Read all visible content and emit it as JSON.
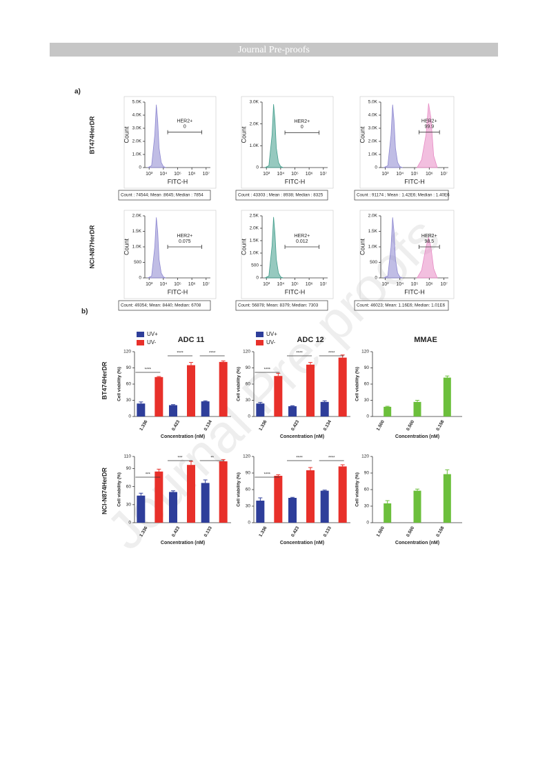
{
  "header": "Journal Pre-proofs",
  "watermark": "Journal Pre-proofs",
  "panel_labels": [
    "a)",
    "b)"
  ],
  "row_labels": [
    "BT474HerDR",
    "NCI-N87HerDR",
    "BT474HerDR",
    "NCI-N874HerDR"
  ],
  "chart_data": [
    {
      "type": "flow",
      "ylabel": "Count",
      "xlabel": "FITC-H",
      "log_x": true,
      "xlim": [
        500,
        20000000
      ],
      "xticks": [
        {
          "value": 1000,
          "label": "10³"
        },
        {
          "value": 10000,
          "label": "10⁴"
        },
        {
          "value": 100000,
          "label": "10⁵"
        },
        {
          "value": 1000000,
          "label": "10⁶"
        },
        {
          "value": 10000000,
          "label": "10⁷"
        }
      ],
      "ylim": [
        0,
        5000
      ],
      "yticks": [
        0,
        {
          "value": 1000,
          "label": "1.0K"
        },
        {
          "value": 2000,
          "label": "2.0K"
        },
        {
          "value": 3000,
          "label": "3.0K"
        },
        {
          "value": 4000,
          "label": "4.0K"
        },
        {
          "value": 5000,
          "label": "5.0K"
        }
      ],
      "series": [
        {
          "color": "#8c86d0",
          "x": [
            800,
            1500,
            2500,
            3200,
            4000,
            5000,
            7000,
            10000,
            15000
          ],
          "values": [
            0,
            150,
            2500,
            4800,
            3600,
            1500,
            400,
            80,
            0
          ]
        }
      ],
      "gate": {
        "label": "HER2+",
        "value": "0",
        "range": [
          20000,
          5000000
        ],
        "level": 2700
      },
      "stats": "Count : 74544; Mean :8645; Median : 7854"
    },
    {
      "type": "flow",
      "ylabel": "Count",
      "xlabel": "FITC-H",
      "log_x": true,
      "xlim": [
        500,
        20000000
      ],
      "xticks": [
        {
          "value": 1000,
          "label": "10³"
        },
        {
          "value": 10000,
          "label": "10⁴"
        },
        {
          "value": 100000,
          "label": "10⁵"
        },
        {
          "value": 1000000,
          "label": "10⁶"
        },
        {
          "value": 10000000,
          "label": "10⁷"
        }
      ],
      "ylim": [
        0,
        3000
      ],
      "yticks": [
        0,
        {
          "value": 1000,
          "label": "1.0K"
        },
        {
          "value": 2000,
          "label": "2.0K"
        },
        {
          "value": 3000,
          "label": "3.0K"
        }
      ],
      "series": [
        {
          "color": "#3f9c8a",
          "x": [
            800,
            1500,
            2500,
            3200,
            4000,
            5000,
            7000,
            10000,
            15000
          ],
          "values": [
            0,
            90,
            1500,
            2900,
            2200,
            900,
            240,
            50,
            0
          ]
        }
      ],
      "gate": {
        "label": "HER2+",
        "value": "0",
        "range": [
          20000,
          5000000
        ],
        "level": 1600
      },
      "stats": "Count : 43303 ; Mean : 8938; Median : 8325"
    },
    {
      "type": "flow",
      "ylabel": "Count",
      "xlabel": "FITC-H",
      "log_x": true,
      "xlim": [
        500,
        20000000
      ],
      "xticks": [
        {
          "value": 1000,
          "label": "10³"
        },
        {
          "value": 10000,
          "label": "10⁴"
        },
        {
          "value": 100000,
          "label": "10⁵"
        },
        {
          "value": 1000000,
          "label": "10⁶"
        },
        {
          "value": 10000000,
          "label": "10⁷"
        }
      ],
      "ylim": [
        0,
        5000
      ],
      "yticks": [
        0,
        {
          "value": 1000,
          "label": "1.0K"
        },
        {
          "value": 2000,
          "label": "2.0K"
        },
        {
          "value": 3000,
          "label": "3.0K"
        },
        {
          "value": 4000,
          "label": "4.0K"
        },
        {
          "value": 5000,
          "label": "5.0K"
        }
      ],
      "series": [
        {
          "color": "#8c86d0",
          "x": [
            800,
            1500,
            2500,
            3200,
            4000,
            5000,
            7000,
            10000,
            15000
          ],
          "values": [
            0,
            150,
            2500,
            4800,
            3600,
            1500,
            400,
            80,
            0
          ]
        },
        {
          "color": "#e78ac4",
          "x": [
            150000,
            300000,
            600000,
            900000,
            1300000,
            2000000,
            3500000
          ],
          "values": [
            0,
            600,
            2500,
            4900,
            3800,
            900,
            0
          ]
        }
      ],
      "gate": {
        "label": "HER2+",
        "value": "99.9",
        "range": [
          200000,
          5000000
        ],
        "level": 2700
      },
      "stats": "Count : 91174 ; Mean : 1.42E6; Median : 1.40E6"
    },
    {
      "type": "flow",
      "ylabel": "Count",
      "xlabel": "FITC-H",
      "log_x": true,
      "xlim": [
        500,
        20000000
      ],
      "xticks": [
        {
          "value": 1000,
          "label": "10³"
        },
        {
          "value": 10000,
          "label": "10⁴"
        },
        {
          "value": 100000,
          "label": "10⁵"
        },
        {
          "value": 1000000,
          "label": "10⁶"
        },
        {
          "value": 10000000,
          "label": "10⁷"
        }
      ],
      "ylim": [
        0,
        2000
      ],
      "yticks": [
        0,
        500,
        {
          "value": 1000,
          "label": "1.0K"
        },
        {
          "value": 1500,
          "label": "1.5K"
        },
        {
          "value": 2000,
          "label": "2.0K"
        }
      ],
      "series": [
        {
          "color": "#8c86d0",
          "x": [
            800,
            1500,
            2500,
            3200,
            4000,
            5000,
            7000,
            10000,
            15000
          ],
          "values": [
            0,
            60,
            1000,
            1950,
            1500,
            600,
            160,
            30,
            0
          ]
        }
      ],
      "gate": {
        "label": "HER2+",
        "value": "0.075",
        "range": [
          20000,
          5000000
        ],
        "level": 1000
      },
      "stats": "Count: 49354; Mean: 8440; Median: 6708"
    },
    {
      "type": "flow",
      "ylabel": "Count",
      "xlabel": "FITC-H",
      "log_x": true,
      "xlim": [
        500,
        20000000
      ],
      "xticks": [
        {
          "value": 1000,
          "label": "10³"
        },
        {
          "value": 10000,
          "label": "10⁴"
        },
        {
          "value": 100000,
          "label": "10⁵"
        },
        {
          "value": 1000000,
          "label": "10⁶"
        },
        {
          "value": 10000000,
          "label": "10⁷"
        }
      ],
      "ylim": [
        0,
        2500
      ],
      "yticks": [
        0,
        500,
        {
          "value": 1000,
          "label": "1.0K"
        },
        {
          "value": 1500,
          "label": "1.5K"
        },
        {
          "value": 2000,
          "label": "2.0K"
        },
        {
          "value": 2500,
          "label": "2.5K"
        }
      ],
      "series": [
        {
          "color": "#3f9c8a",
          "x": [
            800,
            1500,
            2500,
            3200,
            4000,
            5000,
            7000,
            10000,
            15000
          ],
          "values": [
            0,
            80,
            1300,
            2450,
            1800,
            750,
            200,
            40,
            0
          ]
        }
      ],
      "gate": {
        "label": "HER2+",
        "value": "0.012",
        "range": [
          20000,
          5000000
        ],
        "level": 1250
      },
      "stats": "Count: 56878; Mean: 8379; Median: 7303"
    },
    {
      "type": "flow",
      "ylabel": "Count",
      "xlabel": "FITC-H",
      "log_x": true,
      "xlim": [
        500,
        20000000
      ],
      "xticks": [
        {
          "value": 1000,
          "label": "10³"
        },
        {
          "value": 10000,
          "label": "10⁴"
        },
        {
          "value": 100000,
          "label": "10⁵"
        },
        {
          "value": 1000000,
          "label": "10⁶"
        },
        {
          "value": 10000000,
          "label": "10⁷"
        }
      ],
      "ylim": [
        0,
        2000
      ],
      "yticks": [
        0,
        500,
        {
          "value": 1000,
          "label": "1.0K"
        },
        {
          "value": 1500,
          "label": "1.5K"
        },
        {
          "value": 2000,
          "label": "2.0K"
        }
      ],
      "series": [
        {
          "color": "#8c86d0",
          "x": [
            800,
            1500,
            2500,
            3200,
            4000,
            5000,
            7000,
            10000,
            15000
          ],
          "values": [
            0,
            60,
            1000,
            1950,
            1500,
            600,
            160,
            30,
            0
          ]
        },
        {
          "color": "#e78ac4",
          "x": [
            150000,
            300000,
            600000,
            900000,
            1300000,
            2000000,
            3500000
          ],
          "values": [
            0,
            250,
            1000,
            1300,
            1000,
            300,
            0
          ]
        }
      ],
      "gate": {
        "label": "HER2+",
        "value": "98.5",
        "range": [
          200000,
          5000000
        ],
        "level": 1000
      },
      "stats": "Count: 46023; Mean: 1.16E6; Median: 1.01E6"
    },
    {
      "type": "bar",
      "title": "ADC 11",
      "ylabel": "Cell viability (%)",
      "xlabel": "Concentration (nM)",
      "legend": true,
      "categories": [
        "1.336",
        "0.423",
        "0.134"
      ],
      "ylim": [
        0,
        120
      ],
      "yticks": [
        0,
        30,
        60,
        90,
        120
      ],
      "series": [
        {
          "name": "UV+",
          "color": "#2e3e9a",
          "values": [
            24,
            21,
            28
          ],
          "errors": [
            3,
            1,
            1
          ]
        },
        {
          "name": "UV-",
          "color": "#e8302a",
          "values": [
            73,
            95,
            101
          ],
          "errors": [
            1,
            5,
            2
          ]
        }
      ],
      "significance": [
        "****",
        "****",
        "****"
      ]
    },
    {
      "type": "bar",
      "title": "ADC 12",
      "ylabel": "Cell viability (%)",
      "xlabel": "Concentration (nM)",
      "legend": true,
      "categories": [
        "1.336",
        "0.423",
        "0.134"
      ],
      "ylim": [
        0,
        120
      ],
      "yticks": [
        0,
        30,
        60,
        90,
        120
      ],
      "series": [
        {
          "name": "UV+",
          "color": "#2e3e9a",
          "values": [
            24,
            19,
            27
          ],
          "errors": [
            2,
            1,
            2
          ]
        },
        {
          "name": "UV-",
          "color": "#e8302a",
          "values": [
            75,
            96,
            109
          ],
          "errors": [
            5,
            4,
            5
          ]
        }
      ],
      "significance": [
        "****",
        "****",
        "****"
      ]
    },
    {
      "type": "bar",
      "title": "MMAE",
      "ylabel": "Cell viability (%)",
      "xlabel": "Concentration (nM)",
      "categories": [
        "1.500",
        "0.500",
        "0.158"
      ],
      "ylim": [
        0,
        120
      ],
      "yticks": [
        0,
        30,
        60,
        90,
        120
      ],
      "series": [
        {
          "color": "#6cbf3c",
          "values": [
            18,
            27,
            72
          ],
          "errors": [
            1,
            3,
            3
          ]
        }
      ]
    },
    {
      "type": "bar",
      "ylabel": "Cell viability (%)",
      "xlabel": "Concentration (nM)",
      "legend": false,
      "categories": [
        "1.336",
        "0.423",
        "0.133"
      ],
      "ylim": [
        0,
        110
      ],
      "yticks": [
        0,
        30,
        60,
        90,
        110
      ],
      "series": [
        {
          "color": "#2e3e9a",
          "values": [
            45,
            51,
            66
          ],
          "errors": [
            4,
            2,
            5
          ]
        },
        {
          "color": "#e8302a",
          "values": [
            85,
            96,
            102
          ],
          "errors": [
            4,
            6,
            3
          ]
        }
      ],
      "significance": [
        "***",
        "***",
        "**"
      ]
    },
    {
      "type": "bar",
      "ylabel": "Cell viability (%)",
      "xlabel": "Concentration (nM)",
      "legend": false,
      "categories": [
        "1.336",
        "0.423",
        "0.133"
      ],
      "ylim": [
        0,
        120
      ],
      "yticks": [
        0,
        30,
        60,
        90,
        120
      ],
      "series": [
        {
          "color": "#2e3e9a",
          "values": [
            40,
            45,
            58
          ],
          "errors": [
            5,
            1,
            1
          ]
        },
        {
          "color": "#e8302a",
          "values": [
            85,
            95,
            102
          ],
          "errors": [
            2,
            5,
            3
          ]
        }
      ],
      "significance": [
        "****",
        "****",
        "****"
      ]
    },
    {
      "type": "bar",
      "ylabel": "Cell viability (%)",
      "xlabel": "Concentration (nM)",
      "categories": [
        "1.500",
        "0.500",
        "0.158"
      ],
      "ylim": [
        0,
        120
      ],
      "yticks": [
        0,
        30,
        60,
        90,
        120
      ],
      "series": [
        {
          "color": "#6cbf3c",
          "values": [
            35,
            58,
            88
          ],
          "errors": [
            5,
            3,
            8
          ]
        }
      ]
    }
  ]
}
